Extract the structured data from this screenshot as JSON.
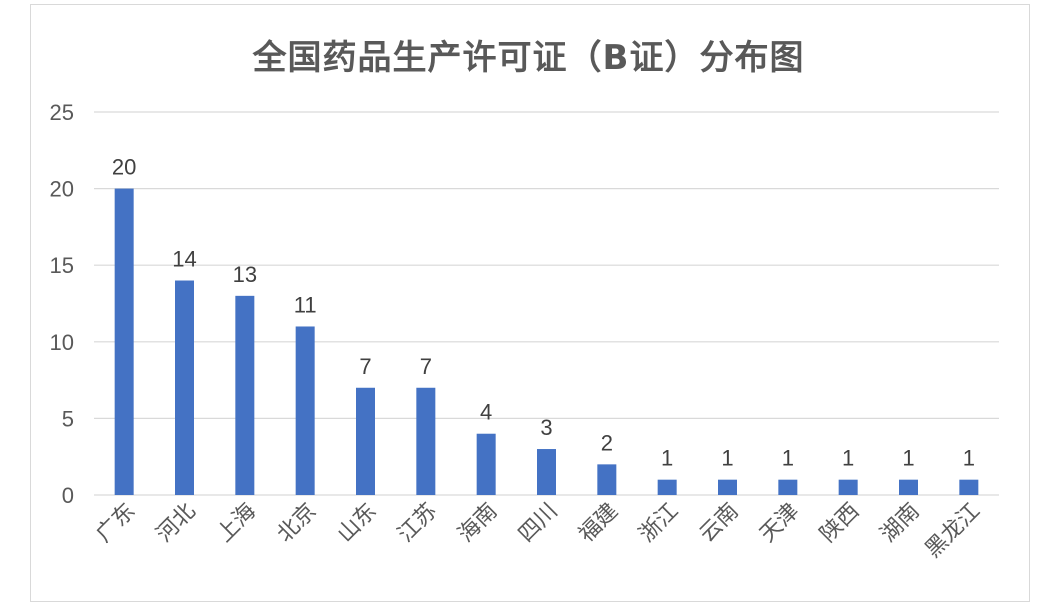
{
  "chart_data": {
    "type": "bar",
    "title": "全国药品生产许可证（B证）分布图",
    "xlabel": "",
    "ylabel": "",
    "ylim": [
      0,
      25
    ],
    "yticks": [
      0,
      5,
      10,
      15,
      20,
      25
    ],
    "grid": true,
    "legend": "none",
    "categories": [
      "广东",
      "河北",
      "上海",
      "北京",
      "山东",
      "江苏",
      "海南",
      "四川",
      "福建",
      "浙江",
      "云南",
      "天津",
      "陕西",
      "湖南",
      "黑龙江"
    ],
    "values": [
      20,
      14,
      13,
      11,
      7,
      7,
      4,
      3,
      2,
      1,
      1,
      1,
      1,
      1,
      1
    ],
    "colors": {
      "bar": "#4472c4",
      "grid": "#d9d9d9",
      "text": "#595959"
    }
  }
}
